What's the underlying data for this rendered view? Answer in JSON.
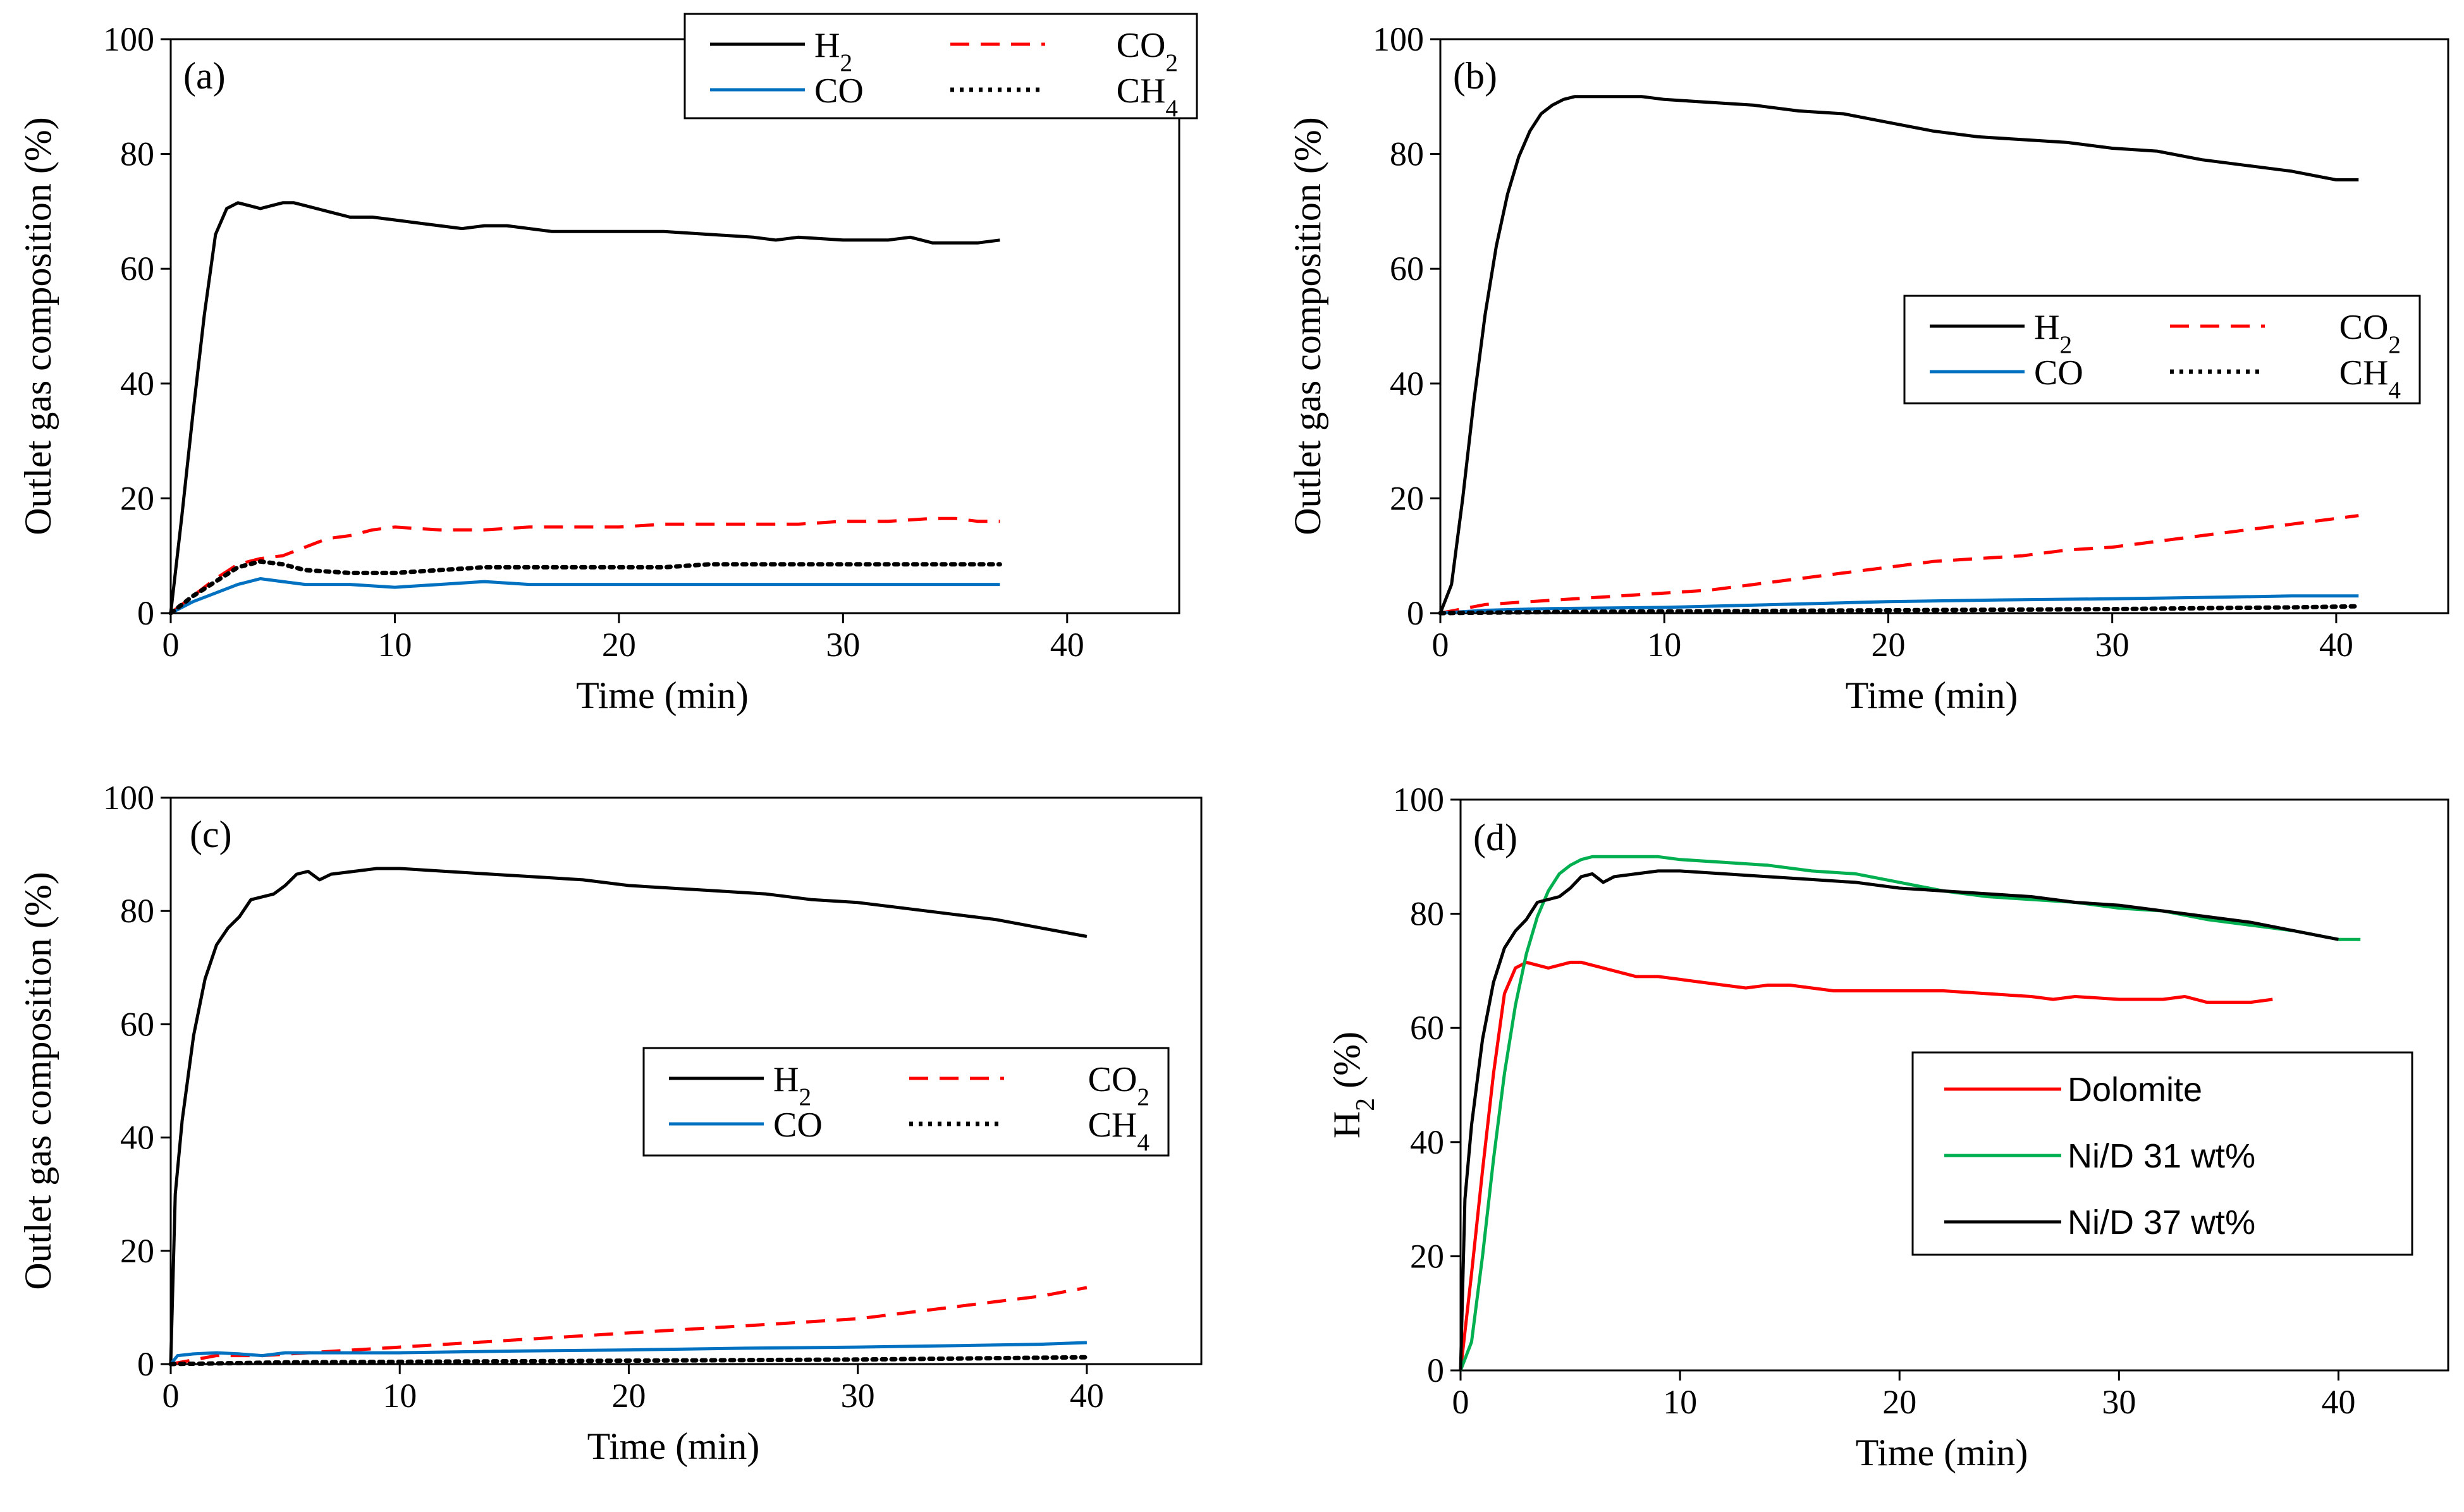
{
  "figure": {
    "title": ""
  },
  "colors": {
    "H2": "#000000",
    "CO2": "#ff0000",
    "CO": "#0070c0",
    "CH4": "#000000",
    "Dolomite": "#ff0000",
    "NiD31": "#00b050",
    "NiD37": "#000000"
  },
  "chart_data": [
    {
      "panel": "(a)",
      "type": "line",
      "xlabel": "Time (min)",
      "ylabel": "Outlet gas composition (%)",
      "xlim": [
        0,
        45
      ],
      "ylim": [
        0,
        100
      ],
      "xticks": [
        "0",
        "10",
        "20",
        "30",
        "40"
      ],
      "yticks": [
        "0",
        "20",
        "40",
        "60",
        "80",
        "100"
      ],
      "legend_position": "top-right",
      "legend": {
        "H2": [
          "H",
          "2"
        ],
        "CO2": [
          "CO",
          "2"
        ],
        "CO": [
          "CO",
          ""
        ],
        "CH4": [
          "CH",
          "4"
        ]
      },
      "series": [
        {
          "key": "H2",
          "style": "solid",
          "x": [
            0,
            0.5,
            1,
            1.5,
            2,
            2.5,
            3,
            3.5,
            4,
            4.5,
            5,
            5.5,
            6,
            7,
            8,
            9,
            10,
            11,
            12,
            13,
            14,
            15,
            16,
            17,
            18,
            19,
            20,
            22,
            24,
            26,
            27,
            28,
            30,
            32,
            33,
            34,
            35,
            36,
            37
          ],
          "y": [
            0,
            17,
            35,
            52,
            66,
            70.5,
            71.5,
            71,
            70.5,
            71,
            71.5,
            71.5,
            71,
            70,
            69,
            69,
            68.5,
            68,
            67.5,
            67,
            67.5,
            67.5,
            67,
            66.5,
            66.5,
            66.5,
            66.5,
            66.5,
            66,
            65.5,
            65,
            65.5,
            65,
            65,
            65.5,
            64.5,
            64.5,
            64.5,
            65
          ]
        },
        {
          "key": "CO2",
          "style": "dashed",
          "x": [
            0,
            1,
            2,
            3,
            4,
            5,
            6,
            7,
            8,
            9,
            10,
            12,
            14,
            16,
            18,
            20,
            22,
            24,
            26,
            28,
            30,
            32,
            34,
            35,
            36,
            37
          ],
          "y": [
            0,
            3,
            6,
            8.5,
            9.5,
            10,
            11.5,
            13,
            13.5,
            14.5,
            15,
            14.5,
            14.5,
            15,
            15,
            15,
            15.5,
            15.5,
            15.5,
            15.5,
            16,
            16,
            16.5,
            16.5,
            16,
            16
          ]
        },
        {
          "key": "CO",
          "style": "solid",
          "x": [
            0,
            1,
            2,
            3,
            4,
            5,
            6,
            8,
            10,
            12,
            14,
            16,
            18,
            20,
            22,
            24,
            26,
            28,
            30,
            32,
            34,
            36,
            37
          ],
          "y": [
            0,
            2,
            3.5,
            5,
            6,
            5.5,
            5,
            5,
            4.5,
            5,
            5.5,
            5,
            5,
            5,
            5,
            5,
            5,
            5,
            5,
            5,
            5,
            5,
            5
          ]
        },
        {
          "key": "CH4",
          "style": "dotted",
          "x": [
            0,
            1,
            2,
            3,
            4,
            5,
            6,
            8,
            10,
            12,
            14,
            16,
            18,
            20,
            22,
            24,
            26,
            28,
            30,
            32,
            34,
            36,
            37
          ],
          "y": [
            0,
            3,
            5.5,
            8,
            9,
            8.5,
            7.5,
            7,
            7,
            7.5,
            8,
            8,
            8,
            8,
            8,
            8.5,
            8.5,
            8.5,
            8.5,
            8.5,
            8.5,
            8.5,
            8.5
          ]
        }
      ]
    },
    {
      "panel": "(b)",
      "type": "line",
      "xlabel": "Time (min)",
      "ylabel": "Outlet gas composition (%)",
      "xlim": [
        0,
        45
      ],
      "ylim": [
        0,
        100
      ],
      "xticks": [
        "0",
        "10",
        "20",
        "30",
        "40"
      ],
      "yticks": [
        "0",
        "20",
        "40",
        "60",
        "80",
        "100"
      ],
      "legend_position": "center-right",
      "legend": {
        "H2": [
          "H",
          "2"
        ],
        "CO2": [
          "CO",
          "2"
        ],
        "CO": [
          "CO",
          ""
        ],
        "CH4": [
          "CH",
          "4"
        ]
      },
      "series": [
        {
          "key": "H2",
          "style": "solid",
          "x": [
            0,
            0.5,
            1,
            1.5,
            2,
            2.5,
            3,
            3.5,
            4,
            4.5,
            5,
            5.5,
            6,
            7,
            8,
            9,
            10,
            12,
            14,
            16,
            18,
            20,
            22,
            24,
            26,
            28,
            30,
            32,
            34,
            36,
            38,
            40,
            41
          ],
          "y": [
            0,
            5,
            20,
            37,
            52,
            64,
            73,
            79.5,
            84,
            87,
            88.5,
            89.5,
            90,
            90,
            90,
            90,
            89.5,
            89,
            88.5,
            87.5,
            87,
            85.5,
            84,
            83,
            82.5,
            82,
            81,
            80.5,
            79,
            78,
            77,
            75.5,
            75.5
          ]
        },
        {
          "key": "CO2",
          "style": "dashed",
          "x": [
            0,
            2,
            4,
            6,
            8,
            10,
            12,
            14,
            16,
            18,
            20,
            22,
            24,
            26,
            28,
            30,
            32,
            34,
            36,
            38,
            40,
            41
          ],
          "y": [
            0,
            1.5,
            2,
            2.5,
            3,
            3.5,
            4,
            5,
            6,
            7,
            8,
            9,
            9.5,
            10,
            11,
            11.5,
            12.5,
            13.5,
            14.5,
            15.5,
            16.5,
            17
          ]
        },
        {
          "key": "CO",
          "style": "solid",
          "x": [
            0,
            2,
            5,
            10,
            15,
            20,
            25,
            30,
            35,
            38,
            41
          ],
          "y": [
            0,
            0.5,
            0.8,
            1,
            1.5,
            2,
            2.3,
            2.5,
            2.8,
            3,
            3
          ]
        },
        {
          "key": "CH4",
          "style": "dotted",
          "x": [
            0,
            5,
            10,
            15,
            20,
            25,
            30,
            35,
            38,
            41
          ],
          "y": [
            0,
            0.2,
            0.3,
            0.4,
            0.5,
            0.6,
            0.7,
            0.9,
            1,
            1.2
          ]
        }
      ]
    },
    {
      "panel": "(c)",
      "type": "line",
      "xlabel": "Time (min)",
      "ylabel": "Outlet gas composition (%)",
      "xlim": [
        0,
        45
      ],
      "ylim": [
        0,
        100
      ],
      "xticks": [
        "0",
        "10",
        "20",
        "30",
        "40"
      ],
      "yticks": [
        "0",
        "20",
        "40",
        "60",
        "80",
        "100"
      ],
      "legend_position": "center-right",
      "legend": {
        "H2": [
          "H",
          "2"
        ],
        "CO2": [
          "CO",
          "2"
        ],
        "CO": [
          "CO",
          ""
        ],
        "CH4": [
          "CH",
          "4"
        ]
      },
      "series": [
        {
          "key": "H2",
          "style": "solid",
          "x": [
            0,
            0.2,
            0.5,
            1,
            1.5,
            2,
            2.5,
            3,
            3.5,
            4,
            4.5,
            5,
            5.5,
            6,
            6.5,
            7,
            8,
            9,
            10,
            12,
            14,
            16,
            18,
            20,
            22,
            24,
            26,
            28,
            30,
            32,
            34,
            36,
            38,
            40
          ],
          "y": [
            0,
            30,
            43,
            58,
            68,
            74,
            77,
            79,
            82,
            82.5,
            83,
            84.5,
            86.5,
            87,
            85.5,
            86.5,
            87,
            87.5,
            87.5,
            87,
            86.5,
            86,
            85.5,
            84.5,
            84,
            83.5,
            83,
            82,
            81.5,
            80.5,
            79.5,
            78.5,
            77,
            75.5
          ]
        },
        {
          "key": "CO2",
          "style": "dashed",
          "x": [
            0,
            2,
            4,
            6,
            8,
            10,
            12,
            14,
            16,
            18,
            20,
            22,
            24,
            26,
            28,
            30,
            32,
            34,
            36,
            38,
            40
          ],
          "y": [
            0,
            1.5,
            1.5,
            2,
            2.5,
            3,
            3.5,
            4,
            4.5,
            5,
            5.5,
            6,
            6.5,
            7,
            7.5,
            8,
            9,
            10,
            11,
            12,
            13.5
          ]
        },
        {
          "key": "CO",
          "style": "solid",
          "x": [
            0,
            0.3,
            1,
            2,
            3,
            4,
            5,
            10,
            15,
            20,
            25,
            30,
            35,
            38,
            40
          ],
          "y": [
            0,
            1.5,
            1.8,
            2,
            1.8,
            1.5,
            2,
            2,
            2.3,
            2.5,
            2.8,
            3,
            3.3,
            3.5,
            3.8
          ]
        },
        {
          "key": "CH4",
          "style": "dotted",
          "x": [
            0,
            5,
            10,
            15,
            20,
            25,
            30,
            35,
            40
          ],
          "y": [
            0,
            0.3,
            0.4,
            0.5,
            0.6,
            0.7,
            0.8,
            1,
            1.2
          ]
        }
      ]
    },
    {
      "panel": "(d)",
      "type": "line",
      "xlabel": "Time (min)",
      "ylabel_main": "H",
      "ylabel_sub": "2",
      "ylabel_rest": " (%)",
      "xlim": [
        0,
        45
      ],
      "ylim": [
        0,
        100
      ],
      "xticks": [
        "0",
        "10",
        "20",
        "30",
        "40"
      ],
      "yticks": [
        "0",
        "20",
        "40",
        "60",
        "80",
        "100"
      ],
      "legend_position": "center-right",
      "legend": {
        "Dolomite": "Dolomite",
        "NiD31": "Ni/D 31 wt%",
        "NiD37": "Ni/D 37 wt%"
      },
      "series": [
        {
          "key": "Dolomite",
          "style": "solid",
          "x": [
            0,
            0.5,
            1,
            1.5,
            2,
            2.5,
            3,
            3.5,
            4,
            4.5,
            5,
            5.5,
            6,
            7,
            8,
            9,
            10,
            11,
            12,
            13,
            14,
            15,
            16,
            17,
            18,
            19,
            20,
            22,
            24,
            26,
            27,
            28,
            30,
            32,
            33,
            34,
            35,
            36,
            37
          ],
          "y": [
            0,
            17,
            35,
            52,
            66,
            70.5,
            71.5,
            71,
            70.5,
            71,
            71.5,
            71.5,
            71,
            70,
            69,
            69,
            68.5,
            68,
            67.5,
            67,
            67.5,
            67.5,
            67,
            66.5,
            66.5,
            66.5,
            66.5,
            66.5,
            66,
            65.5,
            65,
            65.5,
            65,
            65,
            65.5,
            64.5,
            64.5,
            64.5,
            65
          ]
        },
        {
          "key": "NiD31",
          "style": "solid",
          "x": [
            0,
            0.5,
            1,
            1.5,
            2,
            2.5,
            3,
            3.5,
            4,
            4.5,
            5,
            5.5,
            6,
            7,
            8,
            9,
            10,
            12,
            14,
            16,
            18,
            20,
            22,
            24,
            26,
            28,
            30,
            32,
            34,
            36,
            38,
            40,
            41
          ],
          "y": [
            0,
            5,
            20,
            37,
            52,
            64,
            73,
            79.5,
            84,
            87,
            88.5,
            89.5,
            90,
            90,
            90,
            90,
            89.5,
            89,
            88.5,
            87.5,
            87,
            85.5,
            84,
            83,
            82.5,
            82,
            81,
            80.5,
            79,
            78,
            77,
            75.5,
            75.5
          ]
        },
        {
          "key": "NiD37",
          "style": "solid",
          "x": [
            0,
            0.2,
            0.5,
            1,
            1.5,
            2,
            2.5,
            3,
            3.5,
            4,
            4.5,
            5,
            5.5,
            6,
            6.5,
            7,
            8,
            9,
            10,
            12,
            14,
            16,
            18,
            20,
            22,
            24,
            26,
            28,
            30,
            32,
            34,
            36,
            38,
            40
          ],
          "y": [
            0,
            30,
            43,
            58,
            68,
            74,
            77,
            79,
            82,
            82.5,
            83,
            84.5,
            86.5,
            87,
            85.5,
            86.5,
            87,
            87.5,
            87.5,
            87,
            86.5,
            86,
            85.5,
            84.5,
            84,
            83.5,
            83,
            82,
            81.5,
            80.5,
            79.5,
            78.5,
            77,
            75.5
          ]
        }
      ]
    }
  ]
}
